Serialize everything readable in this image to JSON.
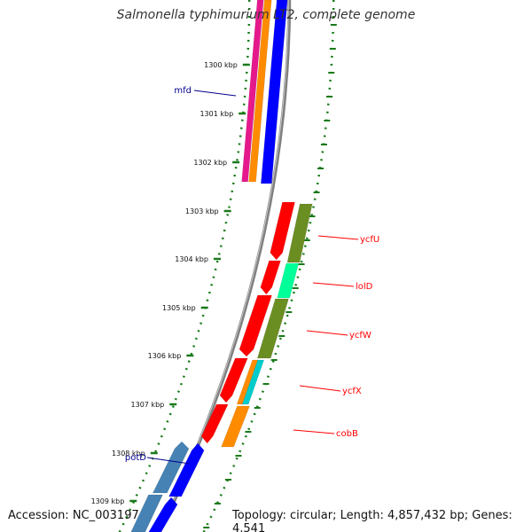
{
  "title": "Salmonella typhimurium LT2, complete genome",
  "footer": {
    "accession": "Accession: NC_003197",
    "summary": "Topology: circular; Length: 4,857,432 bp; Genes: 4,541"
  },
  "colors": {
    "backbone": "#808080",
    "tick": "#1a7a1a",
    "red": "#ff0000",
    "blue": "#0000ff",
    "navy": "#00008b",
    "orange": "#ff8c00",
    "magenta": "#e6198c",
    "olive": "#6b8e23",
    "spring": "#00ff99",
    "cyan": "#00cccc",
    "steel": "#4682b4"
  },
  "ticks": [
    "1300 kbp",
    "1301 kbp",
    "1302 kbp",
    "1303 kbp",
    "1304 kbp",
    "1305 kbp",
    "1306 kbp",
    "1307 kbp",
    "1308 kbp",
    "1309 kbp"
  ],
  "genes": [
    {
      "label": "mfd",
      "color": "navy"
    },
    {
      "label": "ycfU",
      "color": "red"
    },
    {
      "label": "lolD",
      "color": "red"
    },
    {
      "label": "ycfW",
      "color": "red"
    },
    {
      "label": "ycfX",
      "color": "red"
    },
    {
      "label": "cobB",
      "color": "red"
    },
    {
      "label": "potD",
      "color": "navy"
    }
  ]
}
